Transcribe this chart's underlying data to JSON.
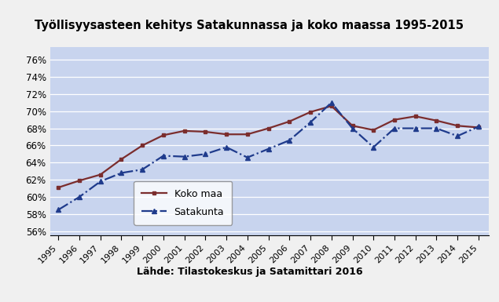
{
  "title": "Työllisyysasteen kehitys Satakunnassa ja koko maassa 1995-2015",
  "subtitle": "Lähde: Tilastokeskus ja Satamittari 2016",
  "years": [
    1995,
    1996,
    1997,
    1998,
    1999,
    2000,
    2001,
    2002,
    2003,
    2004,
    2005,
    2006,
    2007,
    2008,
    2009,
    2010,
    2011,
    2012,
    2013,
    2014,
    2015
  ],
  "koko_maa": [
    61.1,
    61.9,
    62.6,
    64.4,
    66.0,
    67.2,
    67.7,
    67.6,
    67.3,
    67.3,
    68.0,
    68.8,
    69.9,
    70.6,
    68.3,
    67.8,
    69.0,
    69.4,
    68.9,
    68.3,
    68.1
  ],
  "satakunta": [
    58.5,
    60.0,
    61.8,
    62.8,
    63.2,
    64.8,
    64.7,
    65.0,
    65.8,
    64.6,
    65.6,
    66.6,
    68.7,
    71.0,
    68.0,
    65.8,
    68.0,
    68.0,
    68.0,
    67.1,
    68.2
  ],
  "koko_maa_color": "#7B2D2D",
  "satakunta_color": "#1F3B8C",
  "bg_outer": "#8888BB",
  "bg_plot": "#C8D4EE",
  "bg_bottom": "#F0F0F0",
  "yticks": [
    56,
    58,
    60,
    62,
    64,
    66,
    68,
    70,
    72,
    74,
    76
  ],
  "ylim": [
    55.5,
    77.5
  ],
  "xlim": [
    1994.6,
    2015.5
  ]
}
